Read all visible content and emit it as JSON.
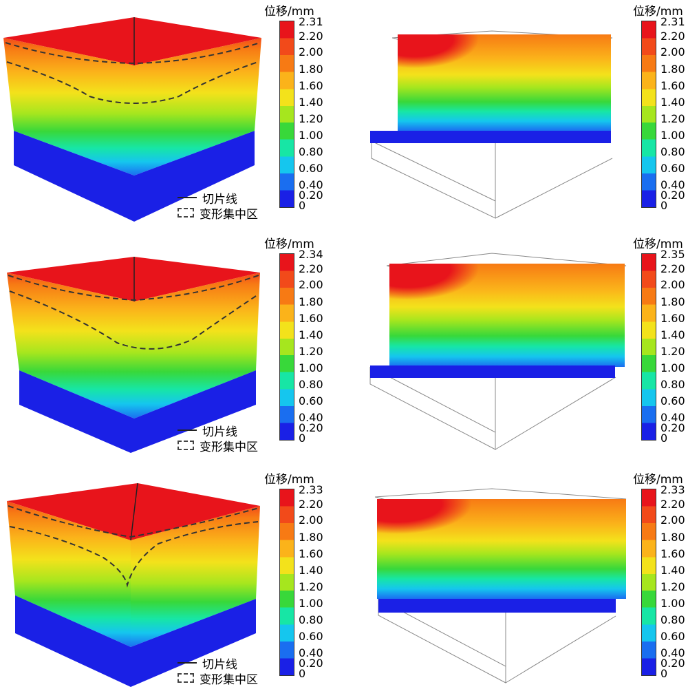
{
  "legend": {
    "slice_line": "切片线",
    "deformation_zone": "变形集中区"
  },
  "panels": [
    {
      "id": "r1-left",
      "title": "位移/mm",
      "ticks": [
        "2.31",
        "2.20",
        "2.00",
        "1.80",
        "1.60",
        "1.40",
        "1.20",
        "1.00",
        "0.80",
        "0.60",
        "0.40",
        "0.20",
        "0"
      ]
    },
    {
      "id": "r1-right",
      "title": "位移/mm",
      "ticks": [
        "2.31",
        "2.20",
        "2.00",
        "1.80",
        "1.60",
        "1.40",
        "1.20",
        "1.00",
        "0.80",
        "0.60",
        "0.40",
        "0.20",
        "0"
      ]
    },
    {
      "id": "r2-left",
      "title": "位移/mm",
      "ticks": [
        "2.34",
        "2.20",
        "2.00",
        "1.80",
        "1.60",
        "1.40",
        "1.20",
        "1.00",
        "0.80",
        "0.60",
        "0.40",
        "0.20",
        "0"
      ]
    },
    {
      "id": "r2-right",
      "title": "位移/mm",
      "ticks": [
        "2.35",
        "2.20",
        "2.00",
        "1.80",
        "1.60",
        "1.40",
        "1.20",
        "1.00",
        "0.80",
        "0.60",
        "0.40",
        "0.20",
        "0"
      ]
    },
    {
      "id": "r3-left",
      "title": "位移/mm",
      "ticks": [
        "2.33",
        "2.20",
        "2.00",
        "1.80",
        "1.60",
        "1.40",
        "1.20",
        "1.00",
        "0.80",
        "0.60",
        "0.40",
        "0.20",
        "0"
      ]
    },
    {
      "id": "r3-right",
      "title": "位移/mm",
      "ticks": [
        "2.33",
        "2.20",
        "2.00",
        "1.80",
        "1.60",
        "1.40",
        "1.20",
        "1.00",
        "0.80",
        "0.60",
        "0.40",
        "0.20",
        "0"
      ]
    }
  ],
  "colors": {
    "scale": [
      "#e8141b",
      "#f24a1a",
      "#f77a14",
      "#fbb31a",
      "#f3e21b",
      "#a6e61e",
      "#38d83a",
      "#17e6a5",
      "#15c6ee",
      "#1a6ef0",
      "#1a20e6"
    ],
    "base": "#1a20e6"
  }
}
